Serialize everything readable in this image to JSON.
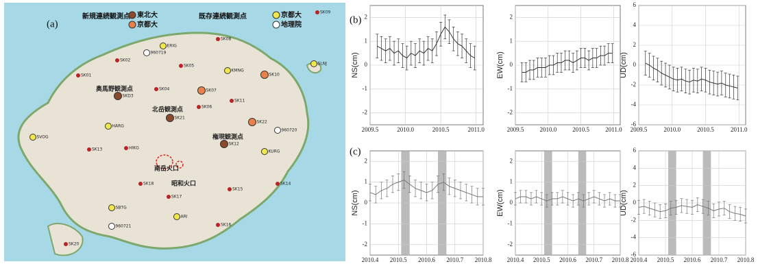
{
  "panel_labels": {
    "a": "(a)",
    "b": "(b)",
    "c": "(c)"
  },
  "map": {
    "legend": {
      "new_title": "新規連続観測点",
      "new_tohoku": "東北大",
      "new_kyoto": "京都大",
      "old_title": "既存連続観測点",
      "old_kyoto": "京都大",
      "old_gsi": "地理院"
    },
    "sites": [
      "奥馬野観測点",
      "北岳観測点",
      "権現観測点",
      "南岳火口",
      "昭和火口"
    ],
    "stations": [
      "SK09",
      "SK08",
      "ERIG",
      "960719",
      "SK02",
      "SK01",
      "SK05",
      "KMNG",
      "SK10",
      "SLNJ",
      "SK04",
      "SK07",
      "SKD3",
      "SK11",
      "SK06",
      "SK21",
      "SK22",
      "HARG",
      "960720",
      "SVOG",
      "SK12",
      "KURG",
      "SK13",
      "HIKG",
      "SK18",
      "SK14",
      "SK15",
      "SK17",
      "SBTG",
      "ARI",
      "960721",
      "SK16",
      "SK20"
    ]
  },
  "chart_data": [
    {
      "type": "errorbar",
      "ylabel": "NS(cm)",
      "x": [
        2009.6,
        2009.66,
        2009.72,
        2009.78,
        2009.84,
        2009.9,
        2009.96,
        2010.02,
        2010.08,
        2010.14,
        2010.2,
        2010.26,
        2010.32,
        2010.38,
        2010.44,
        2010.5,
        2010.56,
        2010.62,
        2010.68,
        2010.74,
        2010.8,
        2010.86,
        2010.92,
        2010.98
      ],
      "values": [
        0.8,
        0.7,
        0.6,
        0.7,
        0.5,
        0.6,
        0.4,
        0.3,
        0.5,
        0.4,
        0.6,
        0.5,
        0.7,
        0.6,
        0.9,
        1.3,
        1.6,
        1.4,
        1.1,
        0.9,
        0.8,
        0.6,
        0.4,
        0.3
      ],
      "error": 0.5,
      "xlim": [
        2009.5,
        2011.1
      ],
      "ylim": [
        -2.5,
        2.5
      ],
      "xticks": [
        2009.5,
        {
          "value": 2010,
          "label": "2010.0"
        },
        2010.5,
        {
          "value": 2011,
          "label": "2011.0"
        }
      ],
      "yticks": [
        -2,
        -1,
        0,
        1,
        2
      ],
      "grid": true,
      "color": "#333333"
    },
    {
      "type": "errorbar",
      "ylabel": "EW(cm)",
      "x": [
        2009.6,
        2009.66,
        2009.72,
        2009.78,
        2009.84,
        2009.9,
        2009.96,
        2010.02,
        2010.08,
        2010.14,
        2010.2,
        2010.26,
        2010.32,
        2010.38,
        2010.44,
        2010.5,
        2010.56,
        2010.62,
        2010.68,
        2010.74,
        2010.8,
        2010.86,
        2010.92,
        2010.98
      ],
      "values": [
        -0.3,
        -0.3,
        -0.2,
        -0.2,
        -0.1,
        -0.1,
        -0.1,
        0,
        0,
        0.1,
        0.1,
        0.2,
        0.2,
        0.1,
        0.2,
        0.3,
        0.3,
        0.2,
        0.3,
        0.3,
        0.4,
        0.4,
        0.5,
        0.5
      ],
      "error": 0.4,
      "xlim": [
        2009.5,
        2011.1
      ],
      "ylim": [
        -2.5,
        2.5
      ],
      "xticks": [
        2009.5,
        {
          "value": 2010,
          "label": "2010.0"
        },
        2010.5,
        {
          "value": 2011,
          "label": "2011.0"
        }
      ],
      "yticks": [
        -2,
        -1,
        0,
        1,
        2
      ],
      "grid": true,
      "color": "#333333"
    },
    {
      "type": "errorbar",
      "ylabel": "UD(cm)",
      "x": [
        2009.6,
        2009.66,
        2009.72,
        2009.78,
        2009.84,
        2009.9,
        2009.96,
        2010.02,
        2010.08,
        2010.14,
        2010.2,
        2010.26,
        2010.32,
        2010.38,
        2010.44,
        2010.5,
        2010.56,
        2010.62,
        2010.68,
        2010.74,
        2010.8,
        2010.86,
        2010.92,
        2010.98
      ],
      "values": [
        0.2,
        0,
        -0.3,
        -0.5,
        -0.8,
        -1,
        -1.2,
        -1.4,
        -1.5,
        -1.4,
        -1.6,
        -1.7,
        -1.5,
        -1.6,
        -1.4,
        -1.5,
        -1.7,
        -1.8,
        -1.9,
        -1.8,
        -2,
        -2.1,
        -2.2,
        -2.3
      ],
      "error": 1.2,
      "xlim": [
        2009.5,
        2011.1
      ],
      "ylim": [
        -6,
        6
      ],
      "xticks": [
        2009.5,
        {
          "value": 2010,
          "label": "2010.0"
        },
        2010.5,
        {
          "value": 2011,
          "label": "2011.0"
        }
      ],
      "yticks": [
        -6,
        -4,
        -2,
        0,
        2,
        4,
        6
      ],
      "grid": true,
      "color": "#333333"
    },
    {
      "type": "errorbar",
      "ylabel": "NS(cm)",
      "x": [
        2010.4,
        2010.42,
        2010.44,
        2010.46,
        2010.48,
        2010.5,
        2010.52,
        2010.54,
        2010.56,
        2010.58,
        2010.6,
        2010.62,
        2010.64,
        2010.66,
        2010.68,
        2010.7,
        2010.72,
        2010.74,
        2010.76,
        2010.78,
        2010.8
      ],
      "values": [
        0.5,
        0.4,
        0.6,
        0.7,
        0.9,
        1.0,
        1.1,
        0.9,
        0.7,
        0.6,
        0.5,
        0.6,
        0.9,
        1.0,
        0.8,
        0.7,
        0.6,
        0.5,
        0.4,
        0.3,
        0.3
      ],
      "error": 0.4,
      "xlim": [
        2010.4,
        2010.8
      ],
      "ylim": [
        -2.5,
        2.5
      ],
      "xticks": [
        2010.4,
        2010.5,
        2010.6,
        2010.7,
        2010.8
      ],
      "yticks": [
        -2,
        -1,
        0,
        1,
        2
      ],
      "grid": true,
      "color": "#777777",
      "spans": [
        [
          2010.51,
          2010.54
        ],
        [
          2010.64,
          2010.67
        ]
      ]
    },
    {
      "type": "errorbar",
      "ylabel": "EW(cm)",
      "x": [
        2010.4,
        2010.42,
        2010.44,
        2010.46,
        2010.48,
        2010.5,
        2010.52,
        2010.54,
        2010.56,
        2010.58,
        2010.6,
        2010.62,
        2010.64,
        2010.66,
        2010.68,
        2010.7,
        2010.72,
        2010.74,
        2010.76,
        2010.78,
        2010.8
      ],
      "values": [
        0.2,
        0.3,
        0.3,
        0.2,
        0.3,
        0.2,
        0.1,
        0.2,
        0.2,
        0.3,
        0.2,
        0.1,
        0.2,
        0.1,
        0.2,
        0.3,
        0.2,
        0.1,
        0.2,
        0.1,
        0.1
      ],
      "error": 0.3,
      "xlim": [
        2010.4,
        2010.8
      ],
      "ylim": [
        -2.5,
        2.5
      ],
      "xticks": [
        2010.4,
        2010.5,
        2010.6,
        2010.7,
        2010.8
      ],
      "yticks": [
        -2,
        -1,
        0,
        1,
        2
      ],
      "grid": true,
      "color": "#777777",
      "spans": [
        [
          2010.51,
          2010.54
        ],
        [
          2010.64,
          2010.67
        ]
      ]
    },
    {
      "type": "errorbar",
      "ylabel": "UD(cm)",
      "x": [
        2010.4,
        2010.42,
        2010.44,
        2010.46,
        2010.48,
        2010.5,
        2010.52,
        2010.54,
        2010.56,
        2010.58,
        2010.6,
        2010.62,
        2010.64,
        2010.66,
        2010.68,
        2010.7,
        2010.72,
        2010.74,
        2010.76,
        2010.78,
        2010.8
      ],
      "values": [
        -0.5,
        -0.4,
        -0.6,
        -0.8,
        -1.0,
        -0.9,
        -0.6,
        -0.5,
        -0.3,
        -0.4,
        -0.5,
        -0.2,
        -0.4,
        -0.6,
        -0.9,
        -0.7,
        -0.6,
        -1.0,
        -1.2,
        -1.3,
        -1.5
      ],
      "error": 0.8,
      "xlim": [
        2010.4,
        2010.8
      ],
      "ylim": [
        -6,
        6
      ],
      "xticks": [
        2010.4,
        2010.5,
        2010.6,
        2010.7,
        2010.8
      ],
      "yticks": [
        -6,
        -4,
        -2,
        0,
        2,
        4,
        6
      ],
      "grid": true,
      "color": "#777777",
      "spans": [
        [
          2010.51,
          2010.54
        ],
        [
          2010.64,
          2010.67
        ]
      ]
    }
  ]
}
